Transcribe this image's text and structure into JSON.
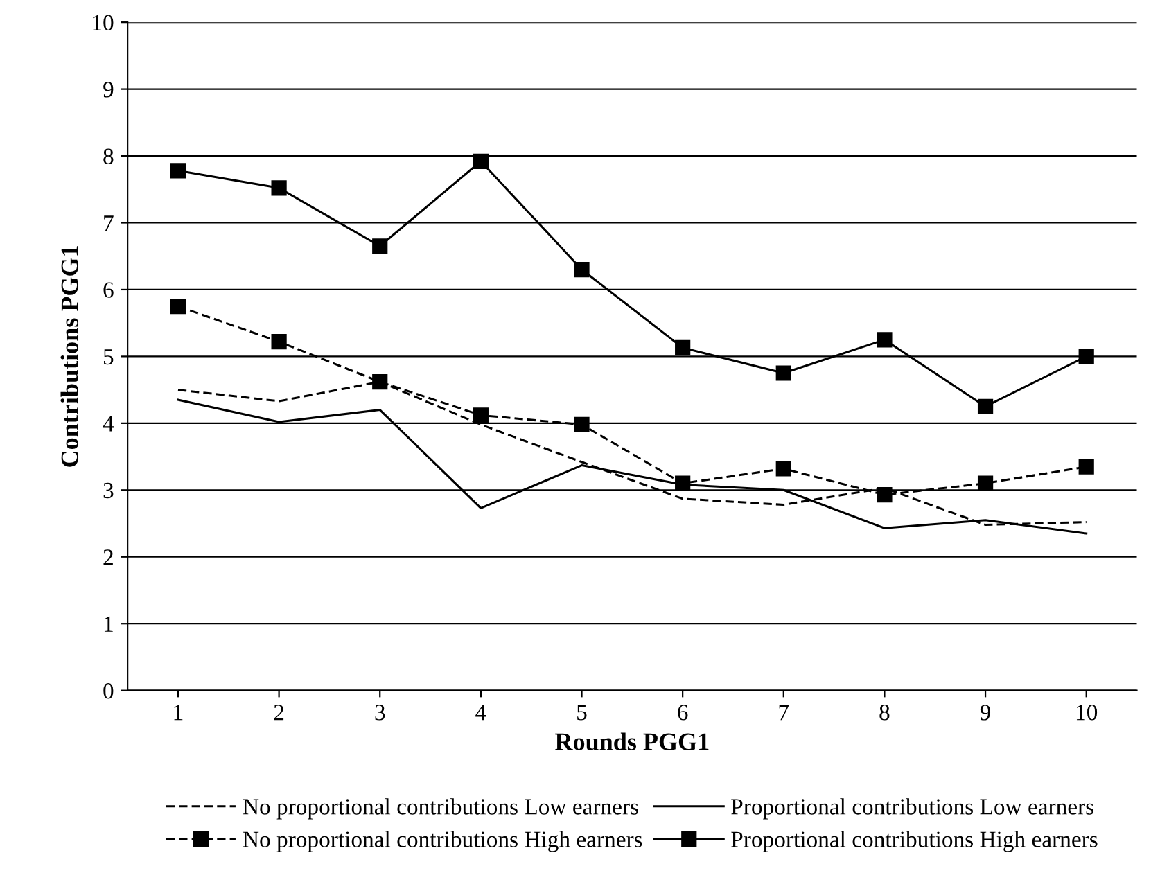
{
  "chart_data": {
    "type": "line",
    "xlabel": "Rounds PGG1",
    "ylabel": "Contributions PGG1",
    "categories": [
      "1",
      "2",
      "3",
      "4",
      "5",
      "6",
      "7",
      "8",
      "9",
      "10"
    ],
    "ylim": [
      0,
      10
    ],
    "yticks": [
      0,
      1,
      2,
      3,
      4,
      5,
      6,
      7,
      8,
      9,
      10
    ],
    "grid": "y",
    "legend": "bottom",
    "series": [
      {
        "name": "No proportional contributions Low earners",
        "color": "#000000",
        "line_style": "dashed",
        "marker": "none",
        "values": [
          4.5,
          4.33,
          4.62,
          3.98,
          3.42,
          2.87,
          2.78,
          3.03,
          2.48,
          2.52
        ]
      },
      {
        "name": "No proportional contributions High earners",
        "color": "#000000",
        "line_style": "dashed",
        "marker": "square",
        "values": [
          5.75,
          5.22,
          4.62,
          4.12,
          3.98,
          3.1,
          3.32,
          2.93,
          3.1,
          3.35
        ]
      },
      {
        "name": "Proportional contributions Low earners",
        "color": "#000000",
        "line_style": "solid",
        "marker": "none",
        "values": [
          4.35,
          4.02,
          4.2,
          2.73,
          3.37,
          3.08,
          3.0,
          2.43,
          2.55,
          2.35
        ]
      },
      {
        "name": "Proportional contributions High earners",
        "color": "#000000",
        "line_style": "solid",
        "marker": "square",
        "values": [
          7.78,
          7.52,
          6.65,
          7.92,
          6.3,
          5.13,
          4.75,
          5.25,
          4.25,
          5.0
        ]
      }
    ]
  }
}
